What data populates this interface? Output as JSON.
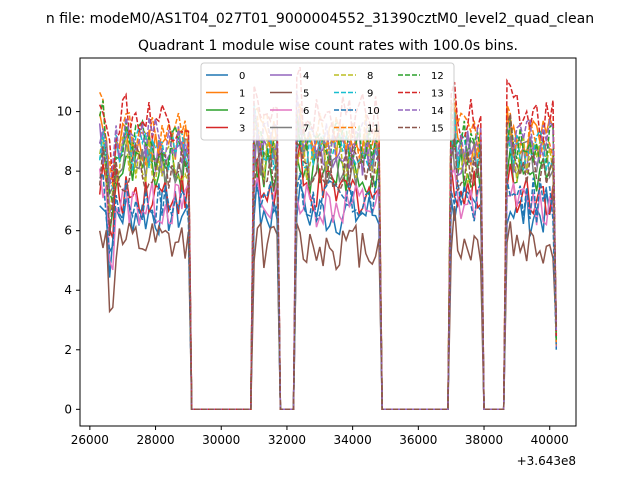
{
  "chart_data": {
    "type": "line",
    "suptitle": "n file: modeM0/AS1T04_027T01_9000004552_31390cztM0_level2_quad_clean",
    "title": "Quadrant 1 module wise count rates with 100.0s bins.",
    "xlabel": "",
    "ylabel": "",
    "offset_label": "+3.643e8",
    "xlim": [
      25700,
      40800
    ],
    "ylim": [
      -0.56,
      11.8
    ],
    "xticks": [
      26000,
      28000,
      30000,
      32000,
      34000,
      36000,
      38000,
      40000
    ],
    "xtick_labels": [
      "26000",
      "28000",
      "30000",
      "32000",
      "34000",
      "36000",
      "38000",
      "40000"
    ],
    "yticks": [
      0,
      2,
      4,
      6,
      8,
      10
    ],
    "ytick_labels": [
      "0",
      "2",
      "4",
      "6",
      "8",
      "10"
    ],
    "grid": false,
    "legend_position": "upper center",
    "bin_seconds": 100,
    "gaps": [
      [
        29100,
        30900
      ],
      [
        31800,
        32200
      ],
      [
        34900,
        36900
      ],
      [
        38000,
        38600
      ]
    ],
    "segments": [
      [
        26300,
        29000
      ],
      [
        31000,
        31700
      ],
      [
        32300,
        34800
      ],
      [
        37000,
        37900
      ],
      [
        38700,
        40200
      ]
    ],
    "series": [
      {
        "name": "0",
        "color": "#1f77b4",
        "dash": "solid",
        "level": 6.6
      },
      {
        "name": "1",
        "color": "#ff7f0e",
        "dash": "solid",
        "level": 9.0
      },
      {
        "name": "2",
        "color": "#2ca02c",
        "dash": "solid",
        "level": 8.0
      },
      {
        "name": "3",
        "color": "#d62728",
        "dash": "solid",
        "level": 7.3
      },
      {
        "name": "4",
        "color": "#9467bd",
        "dash": "solid",
        "level": 8.6
      },
      {
        "name": "5",
        "color": "#8c564b",
        "dash": "solid",
        "level": 5.5
      },
      {
        "name": "6",
        "color": "#e377c2",
        "dash": "solid",
        "level": 6.9
      },
      {
        "name": "7",
        "color": "#7f7f7f",
        "dash": "solid",
        "level": 8.3
      },
      {
        "name": "8",
        "color": "#bcbd22",
        "dash": "dashed",
        "level": 8.4
      },
      {
        "name": "9",
        "color": "#17becf",
        "dash": "dashed",
        "level": 8.7
      },
      {
        "name": "10",
        "color": "#1f77b4",
        "dash": "dashed",
        "level": 7.0
      },
      {
        "name": "11",
        "color": "#ff7f0e",
        "dash": "dashed",
        "level": 9.2
      },
      {
        "name": "12",
        "color": "#2ca02c",
        "dash": "dashed",
        "level": 8.9
      },
      {
        "name": "13",
        "color": "#d62728",
        "dash": "dashed",
        "level": 9.8
      },
      {
        "name": "14",
        "color": "#9467bd",
        "dash": "dashed",
        "level": 9.0
      },
      {
        "name": "15",
        "color": "#8c564b",
        "dash": "dashed",
        "level": 8.1
      }
    ]
  }
}
